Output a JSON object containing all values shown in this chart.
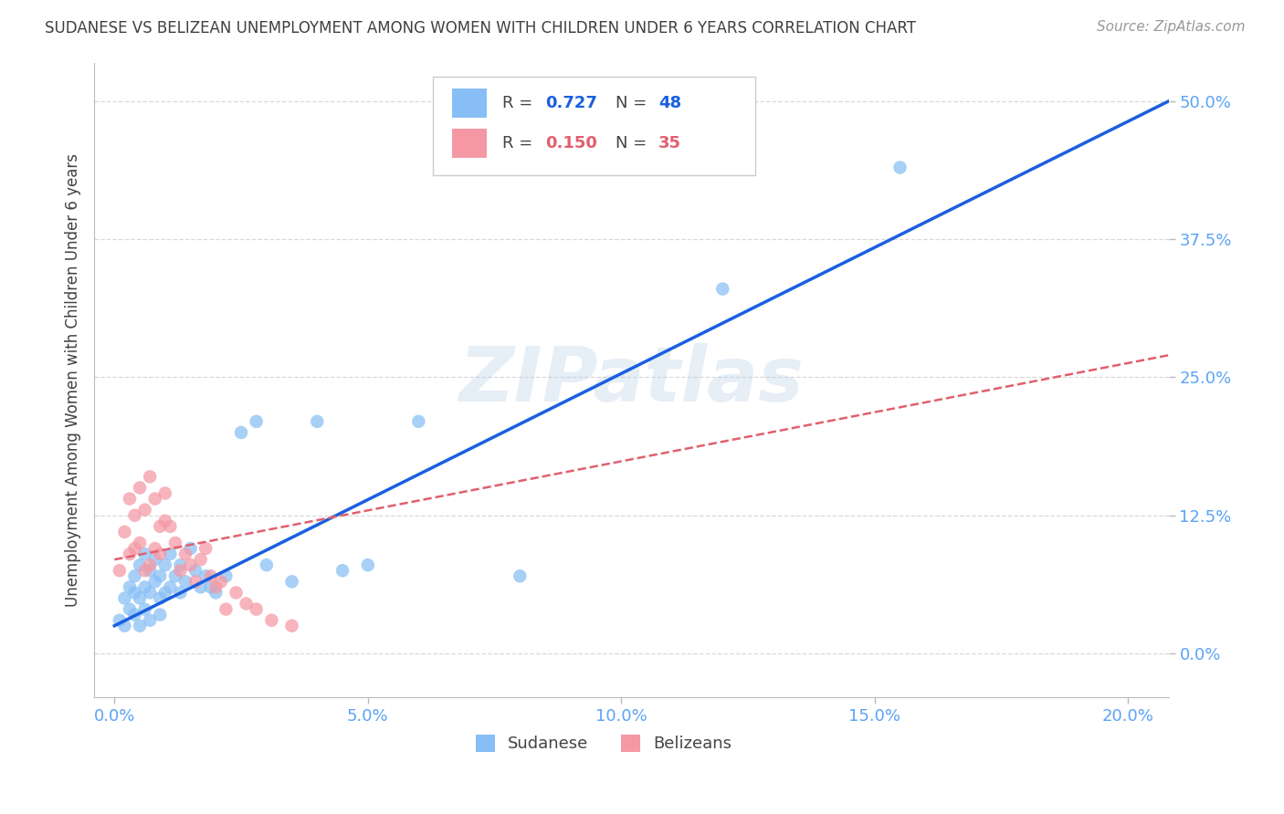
{
  "title": "SUDANESE VS BELIZEAN UNEMPLOYMENT AMONG WOMEN WITH CHILDREN UNDER 6 YEARS CORRELATION CHART",
  "source": "Source: ZipAtlas.com",
  "ylabel": "Unemployment Among Women with Children Under 6 years",
  "xlabel_ticks": [
    "0.0%",
    "5.0%",
    "10.0%",
    "15.0%",
    "20.0%"
  ],
  "xlabel_vals": [
    0.0,
    0.05,
    0.1,
    0.15,
    0.2
  ],
  "ylabel_ticks": [
    "0.0%",
    "12.5%",
    "25.0%",
    "37.5%",
    "50.0%"
  ],
  "ylabel_vals": [
    0.0,
    0.125,
    0.25,
    0.375,
    0.5
  ],
  "xlim": [
    -0.004,
    0.208
  ],
  "ylim": [
    -0.04,
    0.535
  ],
  "sudanese_color": "#87bef5",
  "belizean_color": "#f598a4",
  "sudanese_line_color": "#1a5fde",
  "belizean_line_color": "#e0606e",
  "watermark": "ZIPatlas",
  "bg_color": "#ffffff",
  "grid_color": "#d8d8d8",
  "tick_label_color": "#5ba3f5",
  "title_color": "#404040",
  "ylabel_color": "#404040",
  "sudanese_x": [
    0.001,
    0.002,
    0.002,
    0.003,
    0.003,
    0.004,
    0.004,
    0.004,
    0.005,
    0.005,
    0.005,
    0.006,
    0.006,
    0.006,
    0.007,
    0.007,
    0.007,
    0.008,
    0.008,
    0.009,
    0.009,
    0.009,
    0.01,
    0.01,
    0.011,
    0.011,
    0.012,
    0.013,
    0.013,
    0.014,
    0.015,
    0.016,
    0.017,
    0.018,
    0.019,
    0.02,
    0.022,
    0.025,
    0.028,
    0.03,
    0.035,
    0.04,
    0.045,
    0.05,
    0.06,
    0.08,
    0.12,
    0.155
  ],
  "sudanese_y": [
    0.03,
    0.05,
    0.025,
    0.06,
    0.04,
    0.055,
    0.07,
    0.035,
    0.08,
    0.05,
    0.025,
    0.09,
    0.06,
    0.04,
    0.075,
    0.055,
    0.03,
    0.085,
    0.065,
    0.07,
    0.05,
    0.035,
    0.08,
    0.055,
    0.09,
    0.06,
    0.07,
    0.08,
    0.055,
    0.065,
    0.095,
    0.075,
    0.06,
    0.07,
    0.06,
    0.055,
    0.07,
    0.2,
    0.21,
    0.08,
    0.065,
    0.21,
    0.075,
    0.08,
    0.21,
    0.07,
    0.33,
    0.44
  ],
  "belizean_x": [
    0.001,
    0.002,
    0.003,
    0.003,
    0.004,
    0.004,
    0.005,
    0.005,
    0.006,
    0.006,
    0.007,
    0.007,
    0.008,
    0.008,
    0.009,
    0.009,
    0.01,
    0.01,
    0.011,
    0.012,
    0.013,
    0.014,
    0.015,
    0.016,
    0.017,
    0.018,
    0.019,
    0.02,
    0.021,
    0.022,
    0.024,
    0.026,
    0.028,
    0.031,
    0.035
  ],
  "belizean_y": [
    0.075,
    0.11,
    0.09,
    0.14,
    0.095,
    0.125,
    0.1,
    0.15,
    0.075,
    0.13,
    0.08,
    0.16,
    0.095,
    0.14,
    0.115,
    0.09,
    0.12,
    0.145,
    0.115,
    0.1,
    0.075,
    0.09,
    0.08,
    0.065,
    0.085,
    0.095,
    0.07,
    0.06,
    0.065,
    0.04,
    0.055,
    0.045,
    0.04,
    0.03,
    0.025
  ],
  "sudanese_line_x": [
    0.0,
    0.208
  ],
  "sudanese_line_y": [
    0.025,
    0.5
  ],
  "belizean_line_x": [
    0.0,
    0.208
  ],
  "belizean_line_y": [
    0.085,
    0.27
  ]
}
